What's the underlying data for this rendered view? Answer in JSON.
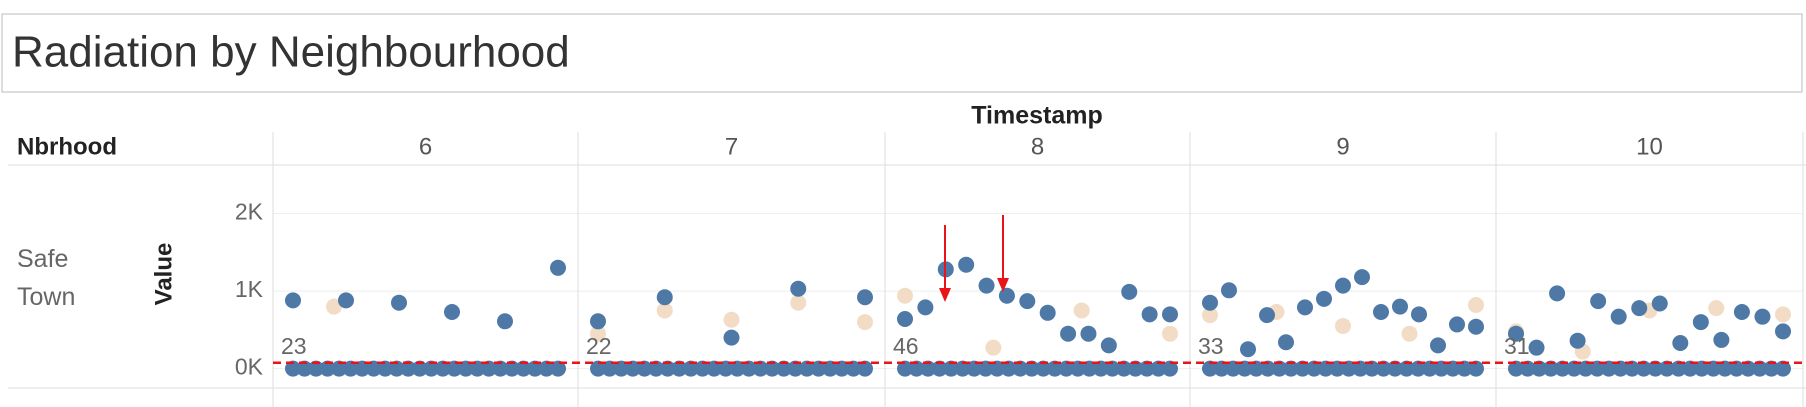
{
  "chart_data": {
    "type": "scatter",
    "title": "Radiation by Neighbourhood",
    "column_header": "Timestamp",
    "row_header": "Nbrhood",
    "row_label": "Safe Town",
    "y_label": "Value",
    "ylim": [
      -250,
      2600
    ],
    "yticks": [
      {
        "value": 0,
        "label": "0K"
      },
      {
        "value": 1000,
        "label": "1K"
      },
      {
        "value": 2000,
        "label": "2K"
      }
    ],
    "grid": true,
    "reference_line": 75,
    "reference_color": "#e8141a",
    "panels": [
      {
        "column": "6",
        "count_label": "23",
        "series": [
          {
            "color": "#4e79a7",
            "values": [
              0,
              0,
              0,
              0,
              0,
              0,
              0,
              0,
              0,
              0,
              0,
              0,
              0,
              0,
              0,
              0,
              0,
              0,
              0,
              0,
              0,
              0,
              0,
              0
            ]
          },
          {
            "color": "#4e79a7",
            "values": [
              880,
              880,
              850,
              730,
              610,
              1300
            ]
          },
          {
            "color": "#f2dcc6",
            "values": [
              800
            ]
          }
        ]
      },
      {
        "column": "7",
        "count_label": "22",
        "series": [
          {
            "color": "#4e79a7",
            "values": [
              0,
              0,
              0,
              0,
              0,
              0,
              0,
              0,
              0,
              0,
              0,
              0,
              0,
              0,
              0,
              0,
              0,
              0,
              0,
              0,
              0,
              0,
              0,
              0
            ]
          },
          {
            "color": "#4e79a7",
            "values": [
              610,
              920,
              400,
              1030,
              920
            ]
          },
          {
            "color": "#f2dcc6",
            "values": [
              450,
              750,
              630,
              850,
              600
            ]
          }
        ]
      },
      {
        "column": "8",
        "count_label": "46",
        "series": [
          {
            "color": "#4e79a7",
            "values": [
              0,
              0,
              0,
              0,
              0,
              0,
              0,
              0,
              0,
              0,
              0,
              0,
              0,
              0,
              0,
              0,
              0,
              0,
              0,
              0,
              0,
              0,
              0,
              0
            ]
          },
          {
            "color": "#4e79a7",
            "values": [
              640,
              790,
              1280,
              1340,
              1070,
              940,
              870,
              720,
              450,
              450,
              300,
              990,
              700,
              700
            ]
          },
          {
            "color": "#f2dcc6",
            "values": [
              940,
              270,
              750,
              450
            ]
          }
        ]
      },
      {
        "column": "9",
        "count_label": "33",
        "series": [
          {
            "color": "#4e79a7",
            "values": [
              0,
              0,
              0,
              0,
              0,
              0,
              0,
              0,
              0,
              0,
              0,
              0,
              0,
              0,
              0,
              0,
              0,
              0,
              0,
              0,
              0,
              0,
              0,
              0
            ]
          },
          {
            "color": "#4e79a7",
            "values": [
              850,
              1010,
              250,
              690,
              340,
              790,
              900,
              1070,
              1180,
              730,
              800,
              700,
              300,
              570,
              540
            ]
          },
          {
            "color": "#f2dcc6",
            "values": [
              690,
              730,
              550,
              450,
              820
            ]
          }
        ]
      },
      {
        "column": "10",
        "count_label": "31",
        "series": [
          {
            "color": "#4e79a7",
            "values": [
              0,
              0,
              0,
              0,
              0,
              0,
              0,
              0,
              0,
              0,
              0,
              0,
              0,
              0,
              0,
              0,
              0,
              0,
              0,
              0,
              0,
              0,
              0,
              0
            ]
          },
          {
            "color": "#4e79a7",
            "values": [
              450,
              270,
              970,
              360,
              870,
              670,
              780,
              840,
              330,
              600,
              370,
              730,
              670,
              480
            ]
          },
          {
            "color": "#f2dcc6",
            "values": [
              480,
              220,
              750,
              780,
              700
            ]
          }
        ]
      }
    ]
  }
}
